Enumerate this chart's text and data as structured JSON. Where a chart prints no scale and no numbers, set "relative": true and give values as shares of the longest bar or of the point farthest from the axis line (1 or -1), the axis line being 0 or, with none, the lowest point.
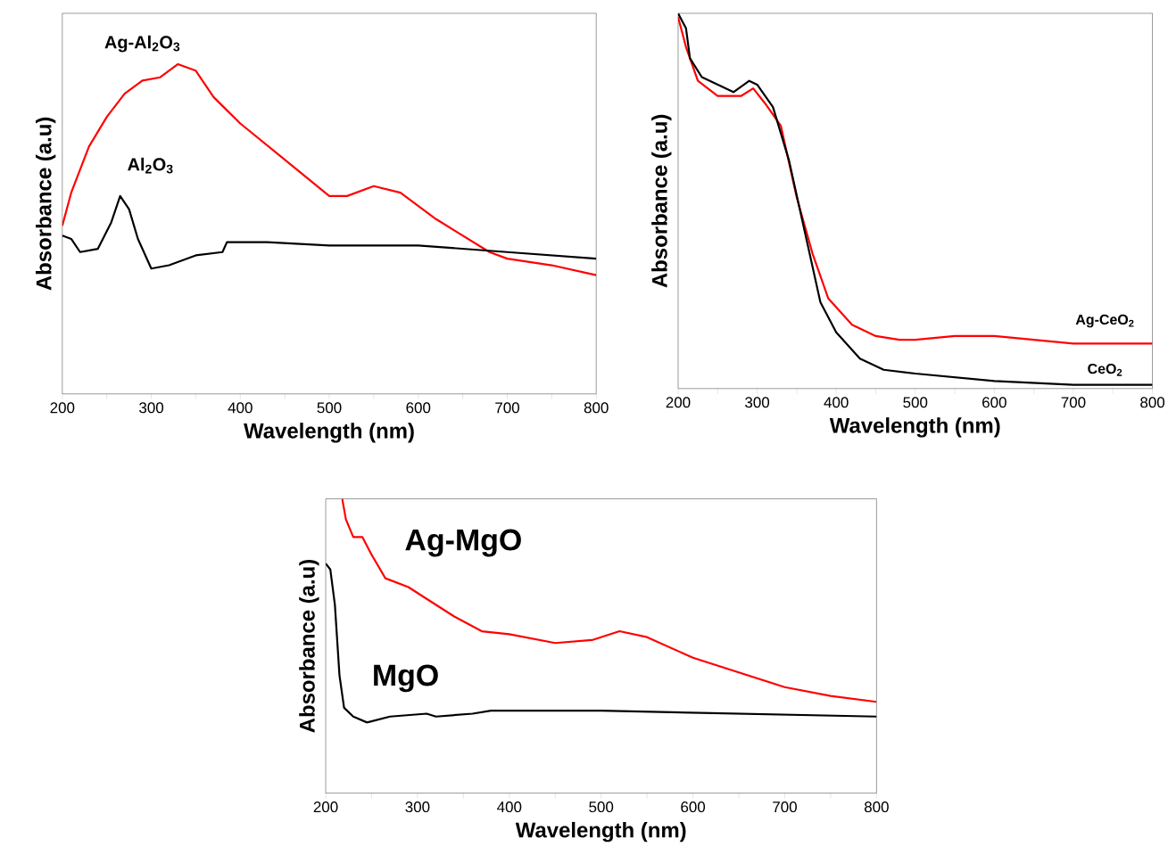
{
  "chart_data": [
    {
      "type": "line",
      "relative": true,
      "xlabel": "Wavelength (nm)",
      "ylabel": "Absorbance (a.u)",
      "xlim": [
        200,
        800
      ],
      "xticks": [
        200,
        {
          "value": 250,
          "label": null
        },
        300,
        {
          "value": 350,
          "label": null
        },
        400,
        {
          "value": 450,
          "label": null
        },
        500,
        {
          "value": 550,
          "label": null
        },
        600,
        {
          "value": 650,
          "label": null
        },
        700,
        {
          "value": 750,
          "label": null
        },
        800
      ],
      "series": [
        {
          "name": "Ag-Al$_{2}$O$_{3}$",
          "color": "#ff0000",
          "x": [
            200,
            210,
            230,
            250,
            270,
            290,
            310,
            330,
            350,
            370,
            400,
            450,
            500,
            520,
            550,
            580,
            620,
            680,
            700,
            750,
            800
          ],
          "values": [
            0.51,
            0.61,
            0.75,
            0.84,
            0.91,
            0.95,
            0.96,
            1.0,
            0.98,
            0.9,
            0.82,
            0.71,
            0.6,
            0.6,
            0.63,
            0.61,
            0.53,
            0.43,
            0.41,
            0.39,
            0.36
          ]
        },
        {
          "name": "Al$_{2}$O$_{3}$",
          "color": "#000000",
          "x": [
            200,
            210,
            220,
            240,
            255,
            265,
            275,
            285,
            300,
            320,
            350,
            380,
            385,
            430,
            500,
            600,
            700,
            800
          ],
          "values": [
            0.48,
            0.47,
            0.43,
            0.44,
            0.52,
            0.6,
            0.56,
            0.47,
            0.38,
            0.39,
            0.42,
            0.43,
            0.46,
            0.46,
            0.45,
            0.45,
            0.43,
            0.41
          ]
        }
      ]
    },
    {
      "type": "line",
      "relative": true,
      "xlabel": "Wavelength (nm)",
      "ylabel": "Absorbance (a.u)",
      "xlim": [
        200,
        800
      ],
      "xticks": [
        200,
        {
          "value": 250,
          "label": null
        },
        300,
        {
          "value": 350,
          "label": null
        },
        400,
        {
          "value": 450,
          "label": null
        },
        500,
        {
          "value": 550,
          "label": null
        },
        600,
        {
          "value": 650,
          "label": null
        },
        700,
        {
          "value": 750,
          "label": null
        },
        800
      ],
      "series": [
        {
          "name": "Ag-CeO$_{2}$",
          "color": "#ff0000",
          "x": [
            200,
            210,
            225,
            250,
            280,
            295,
            310,
            330,
            350,
            370,
            390,
            420,
            450,
            480,
            500,
            550,
            600,
            700,
            800
          ],
          "values": [
            0.99,
            0.91,
            0.82,
            0.78,
            0.78,
            0.8,
            0.76,
            0.7,
            0.51,
            0.36,
            0.24,
            0.17,
            0.14,
            0.13,
            0.13,
            0.14,
            0.14,
            0.12,
            0.12
          ]
        },
        {
          "name": "CeO$_{2}$",
          "color": "#000000",
          "x": [
            200,
            210,
            215,
            230,
            250,
            270,
            290,
            300,
            320,
            340,
            360,
            380,
            400,
            430,
            460,
            500,
            600,
            700,
            800
          ],
          "values": [
            1.0,
            0.96,
            0.88,
            0.83,
            0.81,
            0.79,
            0.82,
            0.81,
            0.75,
            0.61,
            0.42,
            0.23,
            0.15,
            0.08,
            0.05,
            0.04,
            0.02,
            0.01,
            0.01
          ]
        }
      ]
    },
    {
      "type": "line",
      "relative": true,
      "xlabel": "Wavelength (nm)",
      "ylabel": "Absorbance (a.u)",
      "xlim": [
        200,
        800
      ],
      "xticks": [
        200,
        {
          "value": 250,
          "label": null
        },
        300,
        {
          "value": 350,
          "label": null
        },
        400,
        {
          "value": 450,
          "label": null
        },
        500,
        {
          "value": 550,
          "label": null
        },
        600,
        {
          "value": 650,
          "label": null
        },
        700,
        {
          "value": 750,
          "label": null
        },
        800
      ],
      "series": [
        {
          "name": "Ag-MgO",
          "color": "#ff0000",
          "x": [
            218,
            222,
            230,
            240,
            250,
            265,
            290,
            310,
            340,
            370,
            400,
            450,
            490,
            520,
            550,
            600,
            650,
            700,
            750,
            800
          ],
          "values": [
            1.0,
            0.93,
            0.87,
            0.87,
            0.81,
            0.73,
            0.7,
            0.66,
            0.6,
            0.55,
            0.54,
            0.51,
            0.52,
            0.55,
            0.53,
            0.46,
            0.41,
            0.36,
            0.33,
            0.31
          ]
        },
        {
          "name": "MgO",
          "color": "#000000",
          "x": [
            200,
            205,
            210,
            215,
            220,
            230,
            245,
            270,
            310,
            320,
            360,
            380,
            500,
            800
          ],
          "values": [
            0.78,
            0.76,
            0.64,
            0.4,
            0.29,
            0.26,
            0.24,
            0.26,
            0.27,
            0.26,
            0.27,
            0.28,
            0.28,
            0.26
          ]
        }
      ]
    }
  ]
}
